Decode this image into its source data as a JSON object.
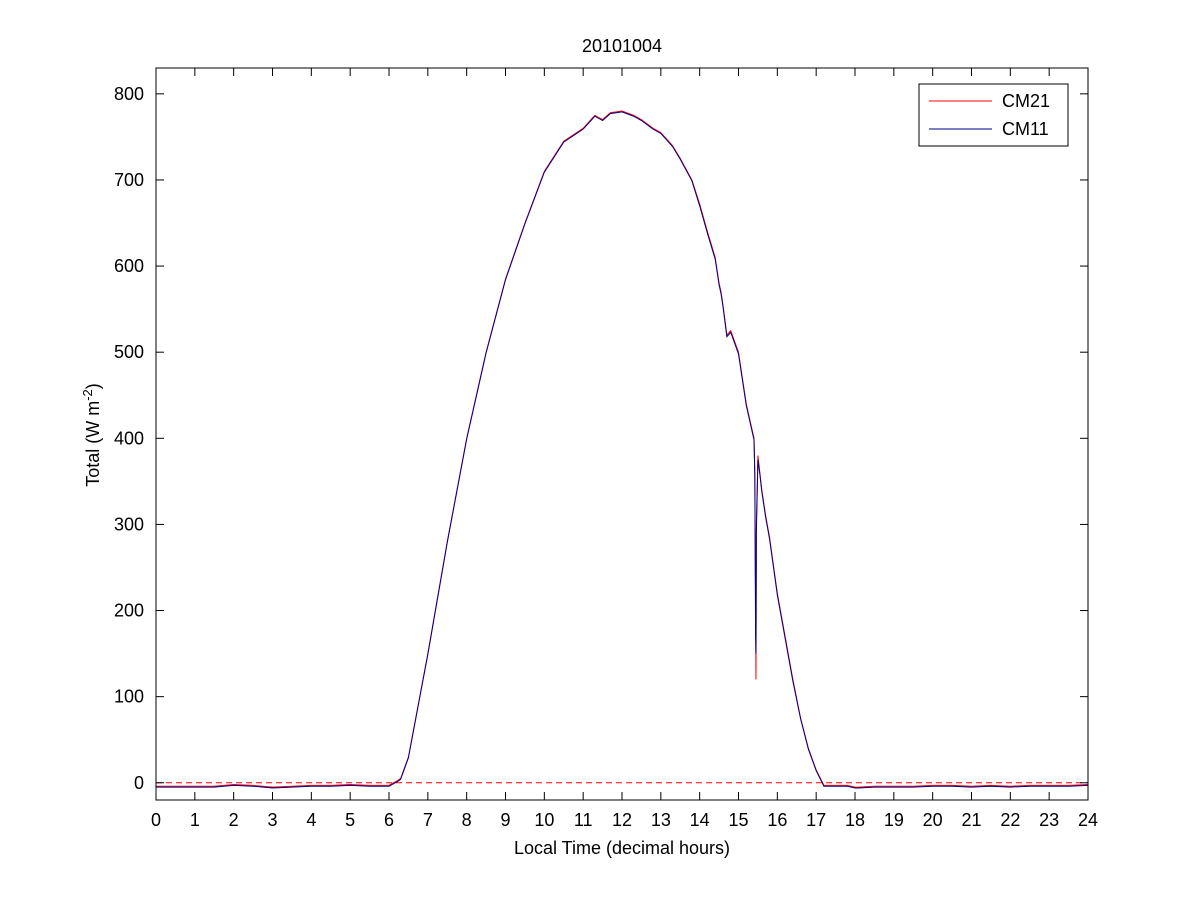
{
  "chart_data": {
    "type": "line",
    "title": "20101004",
    "xlabel": "Local Time (decimal hours)",
    "ylabel_prefix": "Total (W m",
    "ylabel_exponent": "-2",
    "ylabel_suffix": ")",
    "xlim": [
      0,
      24
    ],
    "ylim": [
      -20,
      830
    ],
    "xticks": [
      0,
      1,
      2,
      3,
      4,
      5,
      6,
      7,
      8,
      9,
      10,
      11,
      12,
      13,
      14,
      15,
      16,
      17,
      18,
      19,
      20,
      21,
      22,
      23,
      24
    ],
    "yticks": [
      0,
      100,
      200,
      300,
      400,
      500,
      600,
      700,
      800
    ],
    "grid": false,
    "legend_position": "top-right",
    "reference_line": {
      "y": 0,
      "style": "dashed",
      "color": "#ff0000"
    },
    "series": [
      {
        "name": "CM21",
        "color": "#ff0000",
        "x": [
          0,
          0.5,
          1,
          1.5,
          2,
          2.5,
          3,
          3.5,
          4,
          4.5,
          5,
          5.5,
          6,
          6.2,
          6.3,
          6.5,
          7,
          7.5,
          8,
          8.5,
          9,
          9.5,
          10,
          10.5,
          11,
          11.3,
          11.5,
          11.7,
          12,
          12.3,
          12.5,
          12.8,
          13,
          13.3,
          13.5,
          13.8,
          14,
          14.2,
          14.4,
          14.5,
          14.55,
          14.6,
          14.7,
          14.8,
          15,
          15.1,
          15.2,
          15.3,
          15.35,
          15.4,
          15.42,
          15.44,
          15.45,
          15.46,
          15.5,
          15.55,
          15.6,
          15.7,
          15.8,
          16,
          16.2,
          16.4,
          16.6,
          16.8,
          17,
          17.2,
          17.4,
          17.6,
          17.8,
          18,
          18.1,
          18.5,
          19,
          19.5,
          20,
          20.5,
          21,
          21.5,
          22,
          22.5,
          23,
          23.5,
          24
        ],
        "y": [
          -4,
          -4,
          -4,
          -4,
          -2,
          -3,
          -5,
          -4,
          -3,
          -3,
          -2,
          -3,
          -3,
          2,
          5,
          30,
          150,
          280,
          400,
          500,
          585,
          650,
          710,
          745,
          760,
          775,
          770,
          778,
          780,
          775,
          770,
          760,
          755,
          740,
          725,
          700,
          672,
          640,
          610,
          580,
          570,
          555,
          520,
          525,
          500,
          470,
          440,
          420,
          410,
          400,
          360,
          200,
          120,
          300,
          380,
          360,
          340,
          310,
          285,
          220,
          170,
          120,
          75,
          40,
          15,
          -3,
          -3,
          -3,
          -3,
          -5,
          -5,
          -4,
          -4,
          -4,
          -3,
          -3,
          -4,
          -3,
          -4,
          -3,
          -3,
          -3,
          -2
        ]
      },
      {
        "name": "CM11",
        "color": "#00008b",
        "x": [
          0,
          0.5,
          1,
          1.5,
          2,
          2.5,
          3,
          3.5,
          4,
          4.5,
          5,
          5.5,
          6,
          6.2,
          6.3,
          6.5,
          7,
          7.5,
          8,
          8.5,
          9,
          9.5,
          10,
          10.5,
          11,
          11.3,
          11.5,
          11.7,
          12,
          12.3,
          12.5,
          12.8,
          13,
          13.3,
          13.5,
          13.8,
          14,
          14.2,
          14.4,
          14.5,
          14.55,
          14.6,
          14.7,
          14.8,
          15,
          15.1,
          15.2,
          15.3,
          15.35,
          15.4,
          15.42,
          15.44,
          15.45,
          15.46,
          15.5,
          15.55,
          15.6,
          15.7,
          15.8,
          16,
          16.2,
          16.4,
          16.6,
          16.8,
          17,
          17.2,
          17.4,
          17.6,
          17.8,
          18,
          18.1,
          18.5,
          19,
          19.5,
          20,
          20.5,
          21,
          21.5,
          22,
          22.5,
          23,
          23.5,
          24
        ],
        "y": [
          -5,
          -5,
          -5,
          -5,
          -3,
          -4,
          -6,
          -5,
          -4,
          -4,
          -3,
          -4,
          -4,
          1,
          4,
          29,
          149,
          279,
          399,
          499,
          584,
          649,
          709,
          744,
          759,
          774,
          769,
          777,
          779,
          774,
          769,
          759,
          754,
          739,
          724,
          699,
          670,
          638,
          608,
          578,
          568,
          553,
          518,
          523,
          498,
          468,
          438,
          418,
          408,
          398,
          355,
          170,
          150,
          290,
          375,
          358,
          338,
          308,
          283,
          218,
          168,
          118,
          74,
          39,
          14,
          -4,
          -4,
          -4,
          -4,
          -6,
          -6,
          -5,
          -5,
          -5,
          -4,
          -4,
          -5,
          -4,
          -5,
          -4,
          -4,
          -4,
          -3
        ]
      }
    ]
  }
}
